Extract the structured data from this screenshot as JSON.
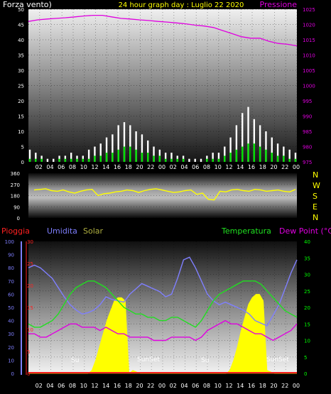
{
  "header": {
    "left_label": "Forza vento)",
    "title": "24 hour graph day : Luglio 22 2020",
    "right_label": "Pressione"
  },
  "colors": {
    "background": "#000000",
    "title": "#ffff00",
    "white": "#ffffff",
    "pressure": "#e000e0",
    "wind_gust": "#ffffff",
    "wind_avg": "#00e000",
    "direction": "#ffff00",
    "rain": "#ff2020",
    "humidity": "#7f7fff",
    "solar": "#ffff00",
    "temperature": "#20e020",
    "dewpoint": "#e000e0",
    "temp_axis": "#00ff00"
  },
  "x_tick_labels": [
    "02",
    "04",
    "06",
    "08",
    "10",
    "12",
    "14",
    "16",
    "18",
    "20",
    "22",
    "00",
    "02",
    "04",
    "06",
    "08",
    "10",
    "12",
    "14",
    "16",
    "18",
    "20",
    "22",
    "00"
  ],
  "direction_labels": [
    "N",
    "W",
    "S",
    "E",
    "N"
  ],
  "bottom_headers": {
    "rain": "Pioggia",
    "humidity": "Umidita",
    "solar": "Solar",
    "temperature": "Temperatura",
    "dewpoint": "Dew Point (°C)"
  },
  "sun_labels": [
    "Su",
    "SunSet",
    "Su",
    "SunSet"
  ],
  "chart_data": [
    {
      "type": "line",
      "series": [
        {
          "name": "Forza vento",
          "axis": "left",
          "style": "bars",
          "values": [
            4,
            3,
            2,
            1,
            1,
            2,
            2,
            3,
            2,
            2,
            4,
            5,
            6,
            8,
            9,
            12,
            13,
            12,
            10,
            9,
            7,
            5,
            4,
            3,
            3,
            2,
            2,
            1,
            1,
            1,
            2,
            3,
            3,
            5,
            8,
            12,
            16,
            18,
            14,
            12,
            10,
            8,
            6,
            5,
            4,
            3
          ]
        },
        {
          "name": "",
          "axis": "left",
          "values": [
            1,
            1,
            1,
            0,
            0,
            1,
            1,
            1,
            1,
            1,
            1,
            2,
            2,
            3,
            3,
            4,
            5,
            5,
            4,
            3,
            3,
            2,
            2,
            1,
            1,
            1,
            1,
            0,
            0,
            0,
            1,
            1,
            1,
            2,
            3,
            4,
            5,
            6,
            6,
            5,
            4,
            3,
            2,
            2,
            1,
            1
          ]
        },
        {
          "name": "Pressione",
          "axis": "right",
          "values": [
            1021,
            1021.5,
            1021.8,
            1022,
            1022.2,
            1022.5,
            1022.8,
            1023,
            1023,
            1022.5,
            1022,
            1021.8,
            1021.5,
            1021.3,
            1021,
            1020.8,
            1020.5,
            1020.2,
            1019.8,
            1019.5,
            1019,
            1018,
            1017,
            1016,
            1015.5,
            1015.5,
            1014.5,
            1013.8,
            1013.5,
            1013
          ]
        }
      ],
      "x_ticks": [
        "02",
        "04",
        "06",
        "08",
        "10",
        "12",
        "14",
        "16",
        "18",
        "20",
        "22",
        "00",
        "02",
        "04",
        "06",
        "08",
        "10",
        "12",
        "14",
        "16",
        "18",
        "20",
        "22",
        "00"
      ],
      "y_left": {
        "min": 0,
        "max": 50,
        "ticks": [
          0,
          5,
          10,
          15,
          20,
          25,
          30,
          35,
          40,
          45,
          50
        ]
      },
      "y_right": {
        "min": 975,
        "max": 1025,
        "ticks": [
          975,
          980,
          985,
          990,
          995,
          1000,
          1005,
          1010,
          1015,
          1020,
          1025
        ]
      },
      "grid": true
    },
    {
      "type": "line",
      "series": [
        {
          "name": "",
          "values": [
            225,
            230,
            235,
            220,
            215,
            225,
            210,
            200,
            215,
            225,
            230,
            180,
            195,
            200,
            210,
            215,
            225,
            220,
            205,
            220,
            230,
            235,
            225,
            215,
            205,
            210,
            220,
            225,
            190,
            200,
            150,
            145,
            215,
            210,
            225,
            230,
            220,
            215,
            230,
            225,
            215,
            220,
            225,
            215,
            210,
            230
          ]
        }
      ],
      "y_axis": {
        "min": 0,
        "max": 360,
        "ticks": [
          0,
          90,
          180,
          270,
          360
        ]
      },
      "direction_labels": [
        "N",
        "W",
        "S",
        "E",
        "N"
      ]
    },
    {
      "type": "area",
      "series": [
        {
          "name": "Umidita",
          "axis": "humidity",
          "values": [
            80,
            82,
            80,
            76,
            72,
            65,
            58,
            52,
            48,
            45,
            46,
            48,
            52,
            58,
            56,
            55,
            54,
            60,
            64,
            68,
            66,
            64,
            62,
            58,
            60,
            72,
            86,
            88,
            80,
            70,
            60,
            55,
            52,
            54,
            52,
            50,
            48,
            45,
            40,
            38,
            36,
            44,
            52,
            64,
            76,
            86
          ]
        },
        {
          "name": "Temperatura",
          "axis": "temperature",
          "values": [
            15,
            14,
            14,
            15,
            16,
            18,
            21,
            24,
            26,
            27,
            28,
            28,
            27,
            26,
            24,
            22,
            20,
            19,
            18,
            18,
            17,
            17,
            16,
            16,
            17,
            17,
            16,
            15,
            14,
            16,
            19,
            22,
            24,
            25,
            26,
            27,
            28,
            28,
            28,
            27,
            25,
            23,
            21,
            19,
            18,
            17
          ]
        },
        {
          "name": "Dew Point",
          "axis": "temperature",
          "values": [
            12,
            12,
            11,
            11,
            12,
            13,
            14,
            15,
            15,
            14,
            14,
            14,
            13,
            14,
            13,
            12,
            12,
            11,
            11,
            11,
            11,
            10,
            10,
            10,
            11,
            11,
            11,
            11,
            10,
            11,
            13,
            14,
            15,
            16,
            15,
            15,
            14,
            13,
            12,
            12,
            11,
            10,
            11,
            12,
            13,
            15
          ]
        },
        {
          "name": "Solar",
          "axis": "temperature",
          "style": "fill",
          "values": [
            0,
            0,
            0,
            0,
            0,
            0,
            0,
            0,
            0,
            0,
            0,
            0,
            0,
            0,
            0,
            0,
            0,
            1,
            4,
            8,
            12,
            16,
            19,
            22,
            23,
            23,
            22,
            0,
            1,
            0.5,
            0,
            0,
            0,
            0,
            0,
            0,
            0,
            0,
            0,
            0,
            0,
            0,
            0,
            0,
            0,
            0,
            0,
            0,
            0,
            0,
            0,
            0,
            0,
            0,
            1,
            4,
            8,
            13,
            17,
            21,
            23,
            24,
            24,
            22,
            1,
            0.5,
            0,
            0,
            0,
            0,
            0,
            0,
            0
          ]
        },
        {
          "name": "Pioggia",
          "axis": "rain",
          "values": [
            0,
            0,
            0,
            0,
            0,
            0,
            0,
            0,
            0,
            0,
            0,
            0,
            0,
            0,
            0,
            0,
            0,
            0,
            0,
            0,
            0,
            0,
            0,
            0
          ]
        }
      ],
      "axis_humidity": {
        "min": 0,
        "max": 100,
        "ticks": [
          0,
          10,
          20,
          30,
          40,
          50,
          60,
          70,
          80,
          90,
          100
        ]
      },
      "axis_rain": {
        "min": 0,
        "max": 30,
        "ticks": [
          0,
          5,
          10,
          15,
          20,
          25,
          30
        ]
      },
      "axis_temperature": {
        "min": 0,
        "max": 40,
        "ticks": [
          0,
          5,
          10,
          15,
          20,
          25,
          30,
          35,
          40
        ]
      },
      "x_ticks": [
        "02",
        "04",
        "06",
        "08",
        "10",
        "12",
        "14",
        "16",
        "18",
        "20",
        "22",
        "00",
        "02",
        "04",
        "06",
        "08",
        "10",
        "12",
        "14",
        "16",
        "18",
        "20",
        "22",
        "00"
      ],
      "grid": true
    }
  ]
}
